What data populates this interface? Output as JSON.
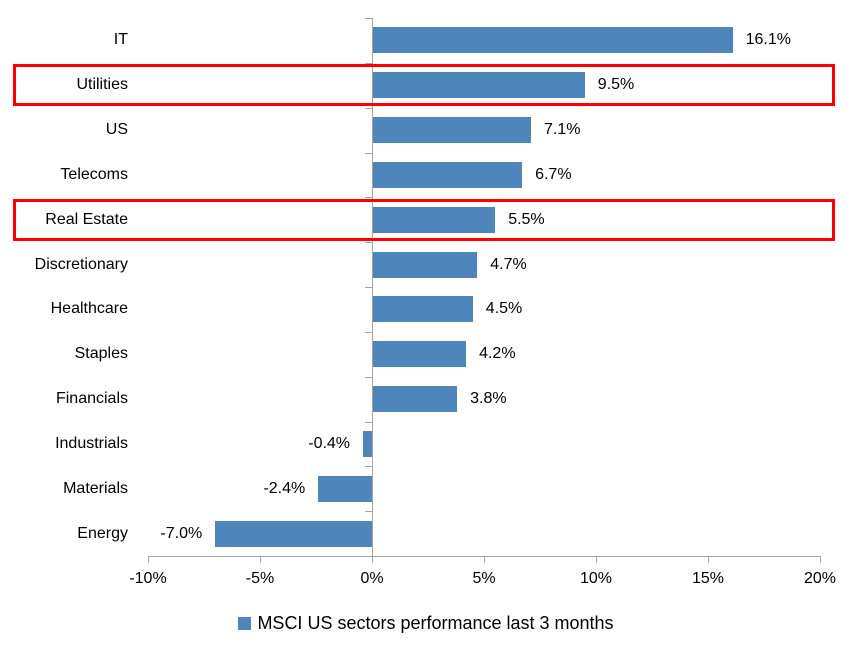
{
  "chart_data": {
    "type": "bar",
    "orientation": "horizontal",
    "title": "",
    "categories": [
      "IT",
      "Utilities",
      "US",
      "Telecoms",
      "Real Estate",
      "Discretionary",
      "Healthcare",
      "Staples",
      "Financials",
      "Industrials",
      "Materials",
      "Energy"
    ],
    "values": [
      16.1,
      9.5,
      7.1,
      6.7,
      5.5,
      4.7,
      4.5,
      4.2,
      3.8,
      -0.4,
      -2.4,
      -7.0
    ],
    "data_labels": [
      "16.1%",
      "9.5%",
      "7.1%",
      "6.7%",
      "5.5%",
      "4.7%",
      "4.5%",
      "4.2%",
      "3.8%",
      "-0.4%",
      "-2.4%",
      "-7.0%"
    ],
    "highlighted_categories": [
      "Utilities",
      "Real Estate"
    ],
    "x_tick_labels": [
      "-10%",
      "-5%",
      "0%",
      "5%",
      "10%",
      "15%",
      "20%"
    ],
    "x_tick_values": [
      -10,
      -5,
      0,
      5,
      10,
      15,
      20
    ],
    "xlim": [
      -10,
      20
    ],
    "grid": false,
    "legend": {
      "label": "MSCI US sectors performance last 3 months",
      "position": "bottom-center"
    },
    "colors": {
      "bar": "#4e86bc",
      "axis": "#a6a6a6",
      "highlight_box": "#ff0000",
      "text": "#000000",
      "background": "#ffffff"
    }
  }
}
